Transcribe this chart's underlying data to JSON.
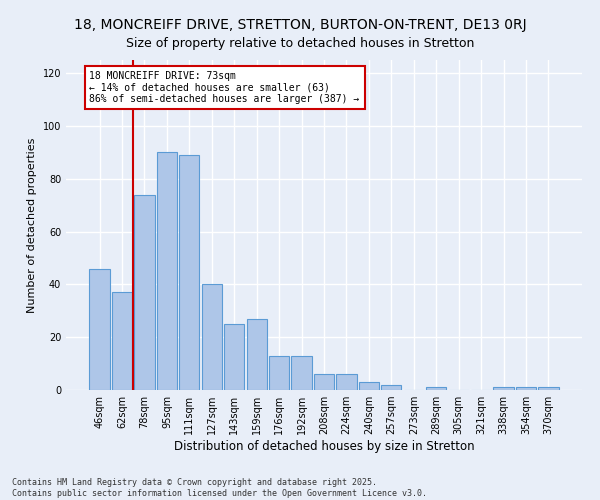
{
  "title1": "18, MONCREIFF DRIVE, STRETTON, BURTON-ON-TRENT, DE13 0RJ",
  "title2": "Size of property relative to detached houses in Stretton",
  "xlabel": "Distribution of detached houses by size in Stretton",
  "ylabel": "Number of detached properties",
  "categories": [
    "46sqm",
    "62sqm",
    "78sqm",
    "95sqm",
    "111sqm",
    "127sqm",
    "143sqm",
    "159sqm",
    "176sqm",
    "192sqm",
    "208sqm",
    "224sqm",
    "240sqm",
    "257sqm",
    "273sqm",
    "289sqm",
    "305sqm",
    "321sqm",
    "338sqm",
    "354sqm",
    "370sqm"
  ],
  "values": [
    46,
    37,
    74,
    90,
    89,
    40,
    25,
    27,
    13,
    13,
    6,
    6,
    3,
    2,
    0,
    1,
    0,
    0,
    1,
    1,
    1
  ],
  "bar_color": "#aec6e8",
  "bar_edge_color": "#5b9bd5",
  "bg_color": "#e8eef8",
  "grid_color": "#ffffff",
  "vline_color": "#cc0000",
  "vline_x": 1.5,
  "annotation_text": "18 MONCREIFF DRIVE: 73sqm\n← 14% of detached houses are smaller (63)\n86% of semi-detached houses are larger (387) →",
  "annotation_box_color": "#ffffff",
  "annotation_box_edge_color": "#cc0000",
  "ylim": [
    0,
    125
  ],
  "yticks": [
    0,
    20,
    40,
    60,
    80,
    100,
    120
  ],
  "footer": "Contains HM Land Registry data © Crown copyright and database right 2025.\nContains public sector information licensed under the Open Government Licence v3.0.",
  "title_fontsize": 10,
  "subtitle_fontsize": 9,
  "tick_fontsize": 7,
  "ylabel_fontsize": 8,
  "xlabel_fontsize": 8.5,
  "footer_fontsize": 6
}
